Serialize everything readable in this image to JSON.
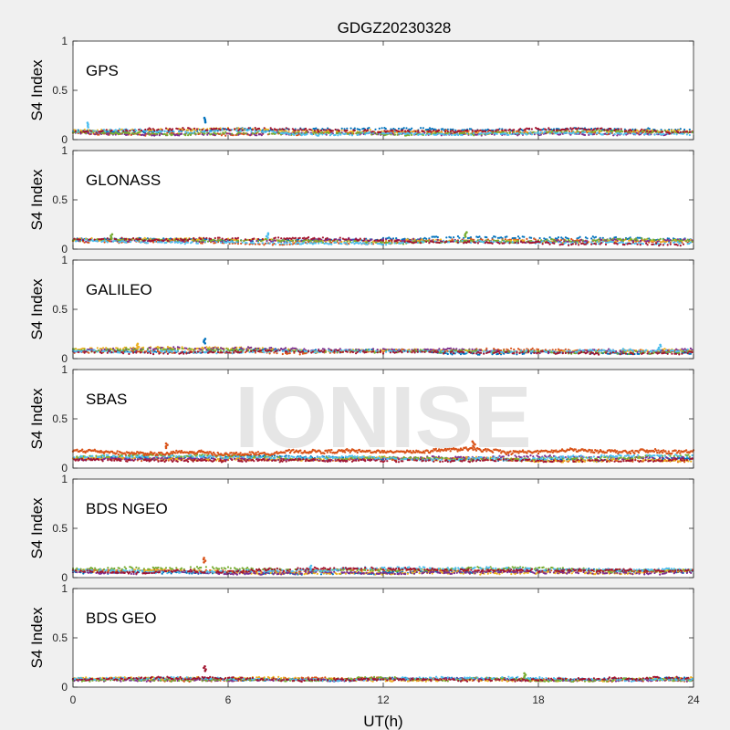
{
  "figure": {
    "title": "GDGZ20230328",
    "watermark": "IONISE",
    "xlabel": "UT(h)",
    "background": "#f0f0f0",
    "watermark_color": "#e6e6e6"
  },
  "series_colors": [
    "#0072bd",
    "#d95319",
    "#edb120",
    "#7e2f8e",
    "#77ac30",
    "#4dbeee",
    "#a2142f"
  ],
  "chart_data": [
    {
      "type": "scatter",
      "panel_label": "GPS",
      "ylabel": "S4 Index",
      "xlim": [
        0,
        24
      ],
      "ylim": [
        0,
        1
      ],
      "xticks": [
        0,
        6,
        12,
        18,
        24
      ],
      "yticks": [
        0,
        0.5,
        1
      ],
      "ytick_labels": [
        "0",
        "0.5",
        "1"
      ],
      "base_level": 0.08,
      "spread": 0.03,
      "density": 1.0,
      "features": [
        {
          "x": 5.1,
          "y": 0.22,
          "color": "#0072bd"
        },
        {
          "x": 0.6,
          "y": 0.17,
          "color": "#4dbeee"
        }
      ]
    },
    {
      "type": "scatter",
      "panel_label": "GLONASS",
      "ylabel": "S4 Index",
      "xlim": [
        0,
        24
      ],
      "ylim": [
        0,
        1
      ],
      "xticks": [
        0,
        6,
        12,
        18,
        24
      ],
      "yticks": [
        0,
        0.5,
        1
      ],
      "ytick_labels": [
        "0",
        "0.5",
        "1"
      ],
      "base_level": 0.08,
      "spread": 0.04,
      "density": 0.9,
      "features": [
        {
          "x": 1.5,
          "y": 0.15,
          "color": "#77ac30"
        },
        {
          "x": 7.5,
          "y": 0.16,
          "color": "#4dbeee"
        },
        {
          "x": 15.2,
          "y": 0.17,
          "color": "#77ac30"
        }
      ]
    },
    {
      "type": "scatter",
      "panel_label": "GALILEO",
      "ylabel": "S4 Index",
      "xlim": [
        0,
        24
      ],
      "ylim": [
        0,
        1
      ],
      "xticks": [
        0,
        6,
        12,
        18,
        24
      ],
      "yticks": [
        0,
        0.5,
        1
      ],
      "ytick_labels": [
        "0",
        "0.5",
        "1"
      ],
      "base_level": 0.08,
      "spread": 0.03,
      "density": 0.9,
      "features": [
        {
          "x": 5.1,
          "y": 0.2,
          "color": "#0072bd"
        },
        {
          "x": 2.5,
          "y": 0.15,
          "color": "#edb120"
        },
        {
          "x": 22.7,
          "y": 0.14,
          "color": "#4dbeee"
        }
      ]
    },
    {
      "type": "scatter",
      "panel_label": "SBAS",
      "ylabel": "S4 Index",
      "xlim": [
        0,
        24
      ],
      "ylim": [
        0,
        1
      ],
      "xticks": [
        0,
        6,
        12,
        18,
        24
      ],
      "yticks": [
        0,
        0.5,
        1
      ],
      "ytick_labels": [
        "0",
        "0.5",
        "1"
      ],
      "base_level": 0.1,
      "spread": 0.03,
      "density": 1.0,
      "orange_band": 0.17,
      "features": [
        {
          "x": 3.6,
          "y": 0.25,
          "color": "#d95319"
        },
        {
          "x": 15.5,
          "y": 0.27,
          "color": "#d95319"
        }
      ]
    },
    {
      "type": "scatter",
      "panel_label": "BDS NGEO",
      "ylabel": "S4 Index",
      "xlim": [
        0,
        24
      ],
      "ylim": [
        0,
        1
      ],
      "xticks": [
        0,
        6,
        12,
        18,
        24
      ],
      "yticks": [
        0,
        0.5,
        1
      ],
      "ytick_labels": [
        "0",
        "0.5",
        "1"
      ],
      "base_level": 0.07,
      "spread": 0.03,
      "density": 1.0,
      "features": [
        {
          "x": 5.1,
          "y": 0.2,
          "color": "#d95319"
        },
        {
          "x": 9.2,
          "y": 0.12,
          "color": "#4dbeee"
        }
      ]
    },
    {
      "type": "scatter",
      "panel_label": "BDS GEO",
      "ylabel": "S4 Index",
      "xlim": [
        0,
        24
      ],
      "ylim": [
        0,
        1
      ],
      "xticks": [
        0,
        6,
        12,
        18,
        24
      ],
      "xtick_labels": [
        "0",
        "6",
        "12",
        "18",
        "24"
      ],
      "yticks": [
        0,
        0.5,
        1
      ],
      "ytick_labels": [
        "0",
        "0.5",
        "1"
      ],
      "base_level": 0.08,
      "spread": 0.015,
      "density": 1.0,
      "features": [
        {
          "x": 5.1,
          "y": 0.21,
          "color": "#a2142f"
        },
        {
          "x": 17.5,
          "y": 0.14,
          "color": "#77ac30"
        }
      ]
    }
  ]
}
